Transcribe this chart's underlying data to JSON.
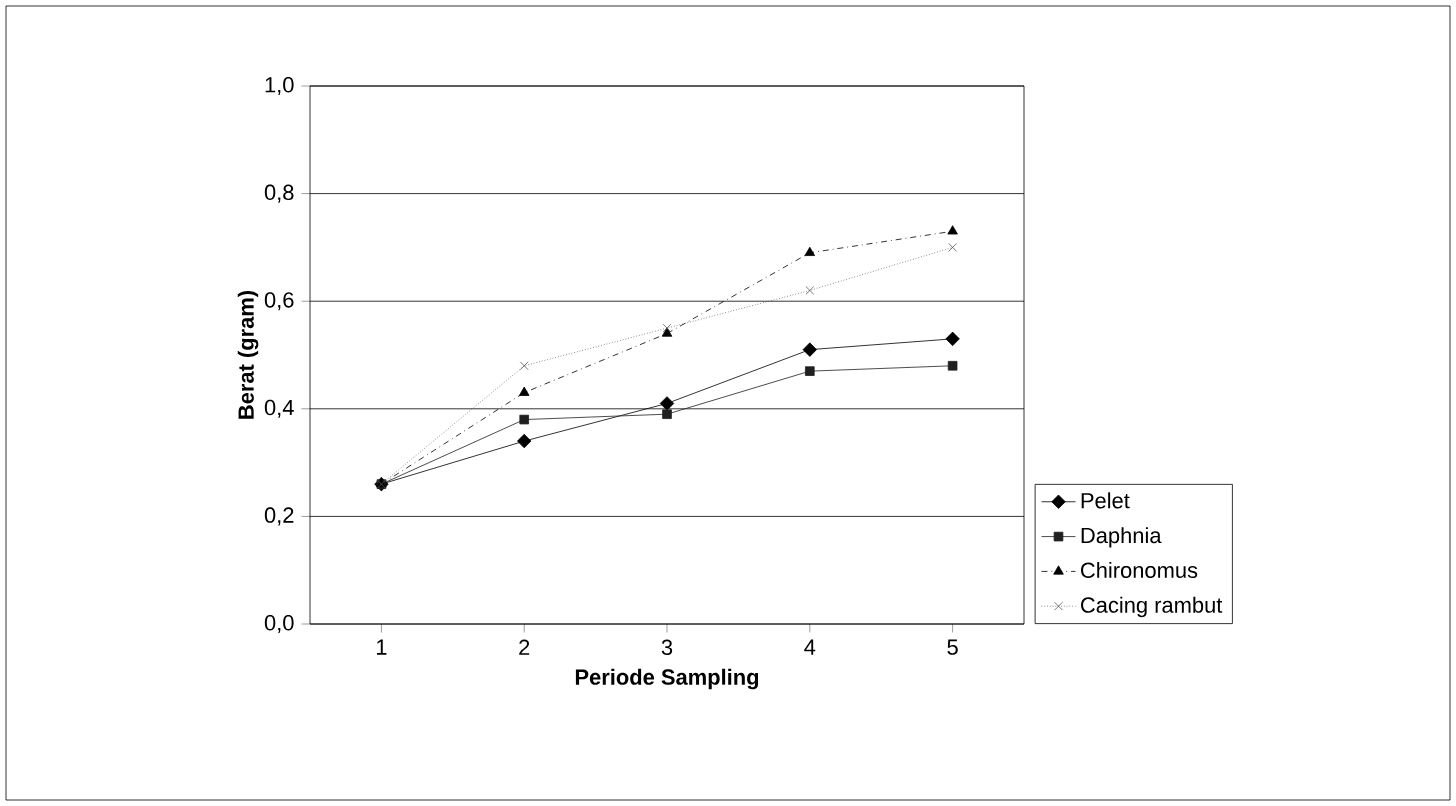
{
  "chart_data": {
    "type": "line",
    "xlabel": "Periode Sampling",
    "ylabel": "Berat (gram)",
    "categories": [
      "1",
      "2",
      "3",
      "4",
      "5"
    ],
    "series": [
      {
        "name": "Pelet",
        "color": "#000000",
        "marker": "diamond",
        "line_style": "solid",
        "values": [
          0.26,
          0.34,
          0.41,
          0.51,
          0.53
        ]
      },
      {
        "name": "Daphnia",
        "color": "#202020",
        "marker": "square",
        "line_style": "solid",
        "values": [
          0.26,
          0.38,
          0.39,
          0.47,
          0.48
        ]
      },
      {
        "name": "Chironomus",
        "color": "#000000",
        "marker": "triangle",
        "line_style": "dashdotted",
        "values": [
          0.26,
          0.43,
          0.54,
          0.69,
          0.73
        ]
      },
      {
        "name": "Cacing rambut",
        "color": "#555555",
        "marker": "cross",
        "line_style": "dotted",
        "values": [
          0.26,
          0.48,
          0.55,
          0.62,
          0.7
        ]
      }
    ],
    "ylim": [
      0,
      1
    ],
    "yticks": [
      {
        "value": 0,
        "label": "0,0"
      },
      {
        "value": 0.2,
        "label": "0,2"
      },
      {
        "value": 0.4,
        "label": "0,4"
      },
      {
        "value": 0.6,
        "label": "0,6"
      },
      {
        "value": 0.8,
        "label": "0,8"
      },
      {
        "value": 1,
        "label": "1,0"
      }
    ],
    "grid": "y",
    "legend": "right"
  }
}
